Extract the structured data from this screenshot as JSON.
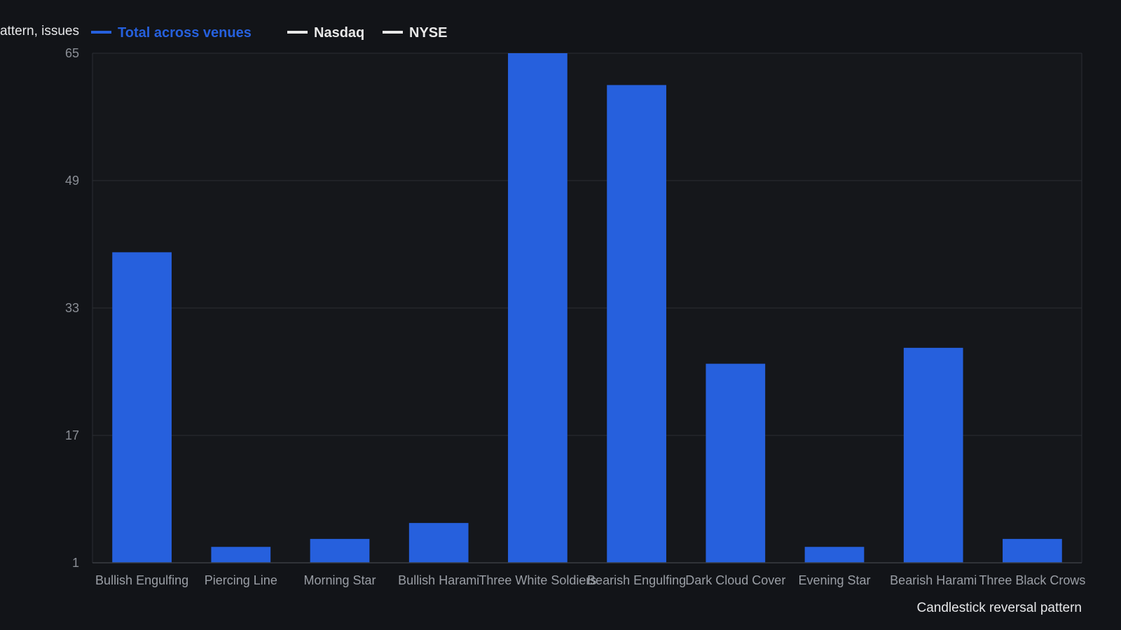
{
  "chart_data": {
    "type": "bar",
    "xlabel": "Candlestick reversal pattern",
    "ylabel": "Count per pattern, issues",
    "categories": [
      "Bullish Engulfing",
      "Piercing Line",
      "Morning Star",
      "Bullish Harami",
      "Three White Soldiers",
      "Bearish Engulfing",
      "Dark Cloud Cover",
      "Evening Star",
      "Bearish Harami",
      "Three Black Crows"
    ],
    "series": [
      {
        "name": "Total across venues",
        "color": "#2660dd",
        "values": [
          40,
          3,
          4,
          6,
          65,
          61,
          26,
          3,
          28,
          4
        ]
      }
    ],
    "legend": [
      {
        "name": "Total across venues",
        "color": "#2660dd"
      },
      {
        "name": "Nasdaq",
        "color": "#e8e8e8"
      },
      {
        "name": "NYSE",
        "color": "#e8e8e8"
      }
    ],
    "legend_position": "top-left",
    "ylim": [
      1,
      65
    ],
    "yticks": [
      1,
      17,
      33,
      49,
      65
    ],
    "grid": true
  }
}
